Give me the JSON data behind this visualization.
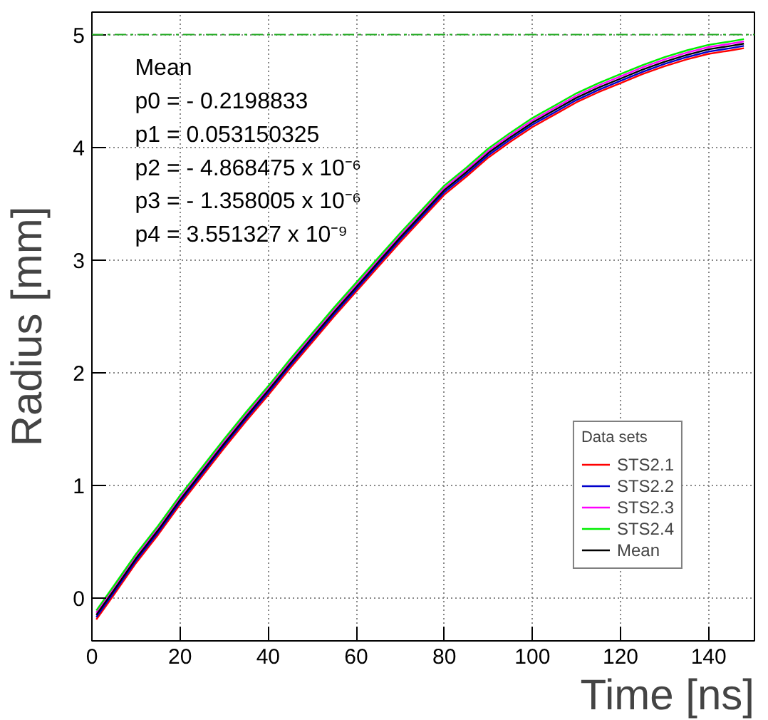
{
  "chart_data": {
    "type": "line",
    "xlabel": "Time [ns]",
    "ylabel": "Radius [mm]",
    "legend_title": "Data sets",
    "x": [
      1,
      5,
      10,
      15,
      20,
      25,
      30,
      35,
      40,
      45,
      50,
      55,
      60,
      65,
      70,
      75,
      80,
      85,
      90,
      95,
      100,
      105,
      110,
      115,
      120,
      125,
      130,
      135,
      140,
      145,
      148
    ],
    "series": [
      {
        "name": "STS2.1",
        "color": "#ff0000",
        "values": [
          -0.19,
          0.03,
          0.31,
          0.56,
          0.83,
          1.08,
          1.33,
          1.57,
          1.8,
          2.04,
          2.27,
          2.5,
          2.72,
          2.94,
          3.16,
          3.37,
          3.58,
          3.74,
          3.91,
          4.05,
          4.18,
          4.29,
          4.4,
          4.49,
          4.57,
          4.65,
          4.72,
          4.78,
          4.83,
          4.86,
          4.88
        ]
      },
      {
        "name": "STS2.2",
        "color": "#0000cc",
        "values": [
          -0.17,
          0.05,
          0.33,
          0.58,
          0.85,
          1.1,
          1.35,
          1.59,
          1.82,
          2.06,
          2.29,
          2.52,
          2.74,
          2.96,
          3.18,
          3.39,
          3.6,
          3.76,
          3.93,
          4.07,
          4.2,
          4.31,
          4.42,
          4.51,
          4.59,
          4.67,
          4.74,
          4.8,
          4.85,
          4.88,
          4.9
        ]
      },
      {
        "name": "STS2.3",
        "color": "#ff00ff",
        "values": [
          -0.13,
          0.09,
          0.37,
          0.62,
          0.89,
          1.14,
          1.39,
          1.63,
          1.86,
          2.1,
          2.33,
          2.56,
          2.78,
          3.0,
          3.22,
          3.43,
          3.64,
          3.8,
          3.97,
          4.11,
          4.24,
          4.35,
          4.46,
          4.55,
          4.63,
          4.71,
          4.78,
          4.84,
          4.89,
          4.92,
          4.94
        ]
      },
      {
        "name": "STS2.4",
        "color": "#00ee00",
        "values": [
          -0.11,
          0.11,
          0.39,
          0.64,
          0.91,
          1.16,
          1.41,
          1.65,
          1.88,
          2.12,
          2.35,
          2.58,
          2.8,
          3.02,
          3.24,
          3.45,
          3.66,
          3.82,
          3.99,
          4.13,
          4.26,
          4.37,
          4.48,
          4.57,
          4.65,
          4.73,
          4.8,
          4.86,
          4.91,
          4.94,
          4.96
        ]
      },
      {
        "name": "Mean",
        "color": "#000000",
        "values": [
          -0.15,
          0.07,
          0.35,
          0.6,
          0.87,
          1.12,
          1.37,
          1.61,
          1.84,
          2.08,
          2.31,
          2.54,
          2.76,
          2.98,
          3.2,
          3.41,
          3.62,
          3.78,
          3.95,
          4.09,
          4.22,
          4.33,
          4.44,
          4.53,
          4.61,
          4.69,
          4.76,
          4.82,
          4.87,
          4.9,
          4.92
        ]
      }
    ],
    "annotations": [
      "Mean",
      "p0 = - 0.2198833",
      "p1 =  0.053150325",
      "p2 = - 4.868475 x 10⁻⁶",
      "p3 = - 1.358005 x 10⁻⁶",
      "p4 = 3.551327 x 10⁻⁹"
    ],
    "ref_lines": [
      {
        "axis": "y",
        "value": 5,
        "color": "#22aa22",
        "line_style": "dashed"
      }
    ],
    "xlim": [
      0,
      150.4
    ],
    "ylim": [
      -0.38,
      5.2
    ],
    "xticks": [
      0,
      20,
      40,
      60,
      80,
      100,
      120,
      140
    ],
    "yticks": [
      0,
      1,
      2,
      3,
      4,
      5
    ],
    "grid": true,
    "legend": "bottom right",
    "line_style": "solid",
    "marker": "none"
  }
}
